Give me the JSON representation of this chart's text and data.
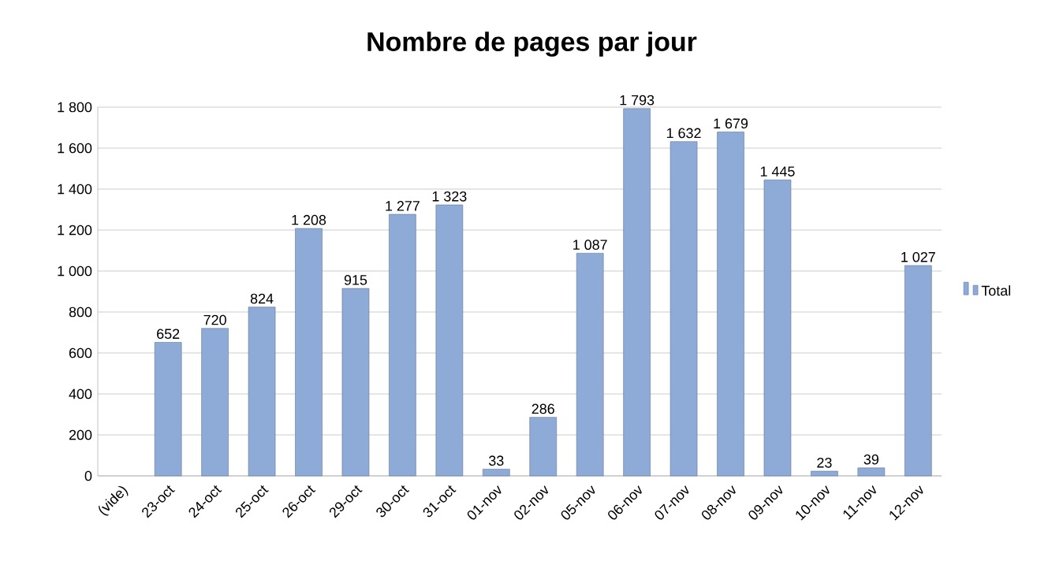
{
  "chart_data": {
    "type": "bar",
    "title": "Nombre de pages par jour",
    "categories": [
      "(vide)",
      "23-oct",
      "24-oct",
      "25-oct",
      "26-oct",
      "29-oct",
      "30-oct",
      "31-oct",
      "01-nov",
      "02-nov",
      "05-nov",
      "06-nov",
      "07-nov",
      "08-nov",
      "09-nov",
      "10-nov",
      "11-nov",
      "12-nov"
    ],
    "series": [
      {
        "name": "Total",
        "color": "#8eaad6",
        "values": [
          null,
          652,
          720,
          824,
          1208,
          915,
          1277,
          1323,
          33,
          286,
          1087,
          1793,
          1632,
          1679,
          1445,
          23,
          39,
          1027
        ],
        "value_labels": [
          null,
          "652",
          "720",
          "824",
          "1 208",
          "915",
          "1 277",
          "1 323",
          "33",
          "286",
          "1 087",
          "1 793",
          "1 632",
          "1 679",
          "1 445",
          "23",
          "39",
          "1 027"
        ]
      }
    ],
    "ylim": [
      0,
      1800
    ],
    "yticks": [
      {
        "value": 0,
        "label": "0"
      },
      {
        "value": 200,
        "label": "200"
      },
      {
        "value": 400,
        "label": "400"
      },
      {
        "value": 600,
        "label": "600"
      },
      {
        "value": 800,
        "label": "800"
      },
      {
        "value": 1000,
        "label": "1 000"
      },
      {
        "value": 1200,
        "label": "1 200"
      },
      {
        "value": 1400,
        "label": "1 400"
      },
      {
        "value": 1600,
        "label": "1 600"
      },
      {
        "value": 1800,
        "label": "1 800"
      }
    ],
    "grid": "y",
    "legend": "right"
  }
}
